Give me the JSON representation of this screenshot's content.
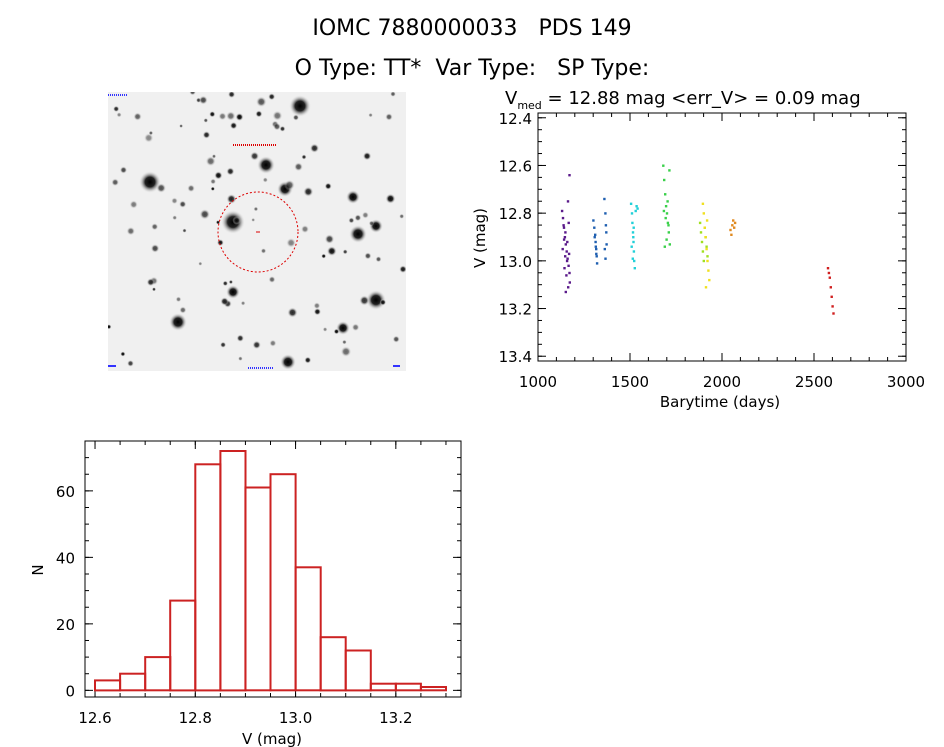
{
  "header": {
    "line1": "IOMC 7880000033   PDS 149",
    "line2": "O Type: TT*  Var Type:   SP Type:"
  },
  "lightcurve": {
    "title_prefix": "V",
    "title_sub": "med",
    "title_rest": " = 12.88 mag <err_V> = 0.09 mag"
  },
  "chart_data": [
    {
      "type": "scatter",
      "xlabel": "Barytime (days)",
      "ylabel": "V (mag)",
      "xlim": [
        1000,
        3000
      ],
      "ylim": [
        13.42,
        12.38
      ],
      "y_inverted": true,
      "xticks": [
        1000,
        1500,
        2000,
        2500,
        3000
      ],
      "xtick_labels": [
        "1000",
        "1500",
        "2000",
        "2500",
        "3000"
      ],
      "yticks": [
        12.4,
        12.6,
        12.8,
        13.0,
        13.2,
        13.4
      ],
      "ytick_labels": [
        "12.4",
        "12.6",
        "12.8",
        "13.0",
        "13.2",
        "13.4"
      ],
      "series": [
        {
          "color": "#5a1a8a",
          "x": [
            1130,
            1135,
            1140,
            1145,
            1150,
            1155,
            1160,
            1165,
            1170,
            1172,
            1138,
            1148,
            1158,
            1168,
            1143,
            1153,
            1163,
            1133,
            1150,
            1162,
            1170,
            1147,
            1157,
            1166,
            1141
          ],
          "y": [
            12.79,
            12.82,
            12.86,
            12.9,
            12.93,
            12.96,
            12.99,
            13.02,
            13.05,
            13.09,
            12.85,
            12.88,
            12.92,
            12.97,
            13.03,
            13.06,
            13.11,
            12.95,
            13.13,
            12.75,
            12.64,
            12.98,
            13.0,
            12.84,
            12.91
          ]
        },
        {
          "color": "#1f5fb0",
          "x": [
            1300,
            1305,
            1310,
            1312,
            1315,
            1318,
            1320,
            1307,
            1313,
            1316,
            1360,
            1365,
            1368,
            1370,
            1372,
            1362,
            1366
          ],
          "y": [
            12.83,
            12.86,
            12.89,
            12.92,
            12.95,
            12.98,
            13.01,
            12.9,
            12.94,
            12.97,
            12.74,
            12.8,
            12.85,
            12.88,
            12.93,
            12.95,
            12.99
          ]
        },
        {
          "color": "#22d0d8",
          "x": [
            1505,
            1510,
            1512,
            1515,
            1518,
            1520,
            1522,
            1525,
            1514,
            1519,
            1530,
            1535,
            1540,
            1508,
            1517
          ],
          "y": [
            12.76,
            12.8,
            12.84,
            12.88,
            12.92,
            12.96,
            13.0,
            13.03,
            12.99,
            12.86,
            12.79,
            12.77,
            12.78,
            12.94,
            12.9
          ]
        },
        {
          "color": "#3ad04a",
          "x": [
            1680,
            1685,
            1690,
            1695,
            1700,
            1705,
            1710,
            1715,
            1688,
            1698,
            1708,
            1683,
            1693,
            1703,
            1713
          ],
          "y": [
            12.6,
            12.66,
            12.72,
            12.77,
            12.8,
            12.84,
            12.88,
            12.93,
            12.94,
            12.91,
            12.85,
            12.79,
            12.82,
            12.75,
            12.62
          ]
        },
        {
          "color": "#a0e020",
          "x": [
            1880,
            1885,
            1890,
            1895,
            1900,
            1905,
            1910,
            1915,
            1920
          ],
          "y": [
            12.84,
            12.88,
            12.92,
            12.96,
            13.0,
            12.86,
            12.9,
            12.94,
            12.98
          ]
        },
        {
          "color": "#f0e020",
          "x": [
            1895,
            1900,
            1905,
            1910,
            1915,
            1920,
            1925,
            1930,
            1912,
            1918
          ],
          "y": [
            12.76,
            12.8,
            12.86,
            12.9,
            12.95,
            13.0,
            13.04,
            13.08,
            13.11,
            12.83
          ]
        },
        {
          "color": "#e08a20",
          "x": [
            2045,
            2050,
            2055,
            2060,
            2065,
            2070
          ],
          "y": [
            12.87,
            12.89,
            12.85,
            12.83,
            12.86,
            12.84
          ]
        },
        {
          "color": "#d02020",
          "x": [
            2575,
            2580,
            2585,
            2590,
            2595,
            2600,
            2605
          ],
          "y": [
            13.03,
            13.05,
            13.07,
            13.11,
            13.15,
            13.19,
            13.22
          ]
        }
      ]
    },
    {
      "type": "bar",
      "subtype": "histogram",
      "xlabel": "V (mag)",
      "ylabel": "N",
      "xlim": [
        12.58,
        13.33
      ],
      "ylim": [
        -2,
        75
      ],
      "xticks": [
        12.6,
        12.8,
        13.0,
        13.2
      ],
      "xtick_labels": [
        "12.6",
        "12.8",
        "13.0",
        "13.2"
      ],
      "yticks": [
        0,
        20,
        40,
        60
      ],
      "ytick_labels": [
        "0",
        "20",
        "40",
        "60"
      ],
      "bin_edges": [
        12.6,
        12.65,
        12.7,
        12.75,
        12.8,
        12.85,
        12.9,
        12.95,
        13.0,
        13.05,
        13.1,
        13.15,
        13.2,
        13.25
      ],
      "values": [
        3,
        5,
        10,
        27,
        68,
        72,
        61,
        65,
        37,
        16,
        12,
        2,
        2,
        1
      ],
      "color": "#cc2222"
    }
  ]
}
